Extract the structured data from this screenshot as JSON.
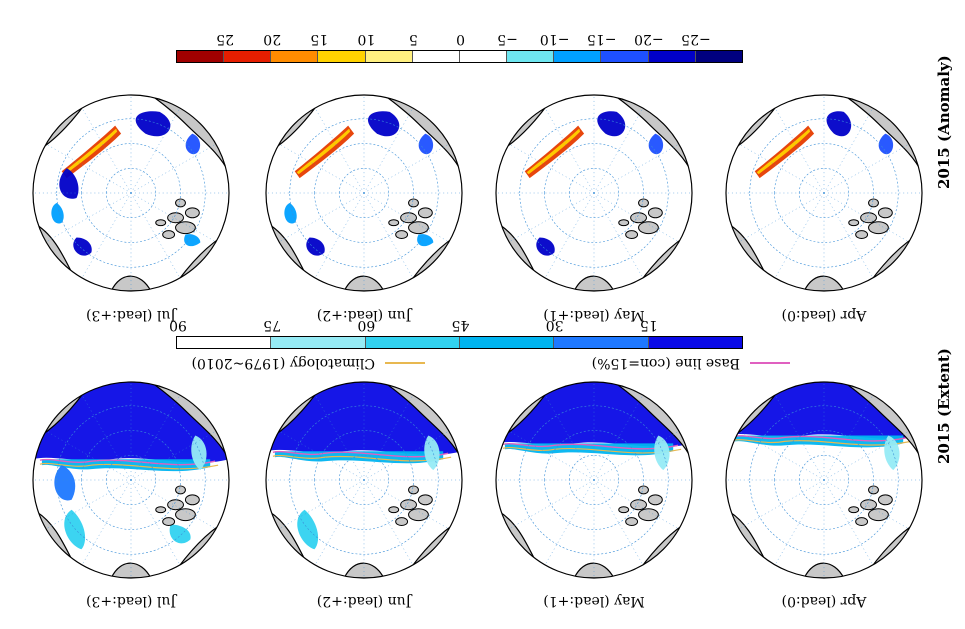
{
  "anomaly_section": {
    "row_label": "2015 (Anomaly)",
    "colorbar": {
      "tick_labels": [
        "−25",
        "−20",
        "−15",
        "−10",
        "−5",
        "0",
        "5",
        "10",
        "15",
        "20",
        "25"
      ],
      "colors": [
        "#00007f",
        "#0000c8",
        "#1e50ff",
        "#00a0ff",
        "#6ee6f0",
        "#ffffff",
        "#ffffff",
        "#fff080",
        "#ffd200",
        "#ff8c00",
        "#e61e00",
        "#a00000"
      ]
    },
    "panels": [
      {
        "title": "Apr  (lead:0)",
        "style": "anom0"
      },
      {
        "title": "May  (lead:+1)",
        "style": "anom1"
      },
      {
        "title": "Jun  (lead:+2)",
        "style": "anom2"
      },
      {
        "title": "Jul  (lead:+3)",
        "style": "anom3"
      }
    ]
  },
  "extent_section": {
    "row_label": "2015 (Extent)",
    "colorbar": {
      "tick_labels": [
        "15",
        "30",
        "45",
        "60",
        "75",
        "90"
      ],
      "colors": [
        "#0a0ae6",
        "#1e78ff",
        "#00b4f0",
        "#32d2f0",
        "#96ebf5",
        "#ffffff"
      ]
    },
    "legend": {
      "base_line": {
        "label": "Base line (con=15%)",
        "color": "#e060c0"
      },
      "climatology": {
        "label": "Climatology (1979~2010)",
        "color": "#e8b850"
      }
    },
    "panels": [
      {
        "title": "Apr  (lead:0)",
        "style": "ext0"
      },
      {
        "title": "May  (lead:+1)",
        "style": "ext1"
      },
      {
        "title": "Jun  (lead:+2)",
        "style": "ext2"
      },
      {
        "title": "Jul  (lead:+3)",
        "style": "ext3"
      }
    ]
  },
  "map_colors": {
    "land": "#c8c8c8",
    "ocean": "#ffffff",
    "coast": "#000000",
    "grid": "#3a8fd8"
  }
}
